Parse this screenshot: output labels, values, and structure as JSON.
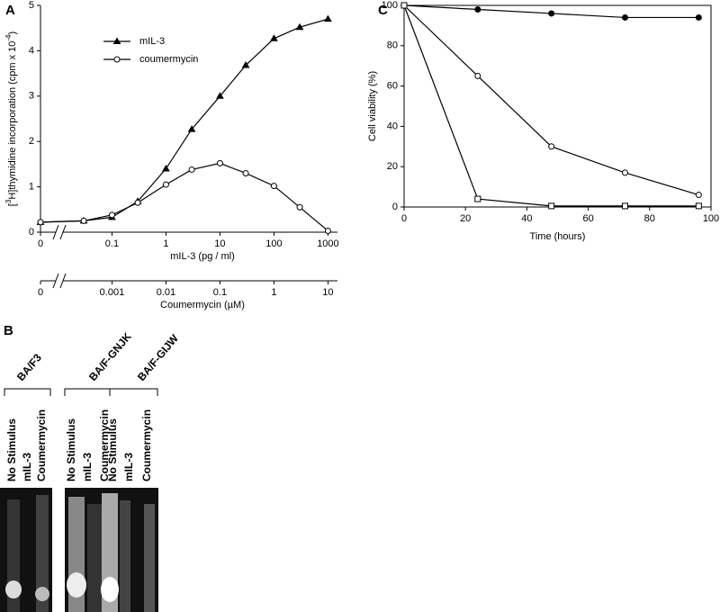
{
  "panel_labels": [
    "A",
    "B",
    "C"
  ],
  "chart_data": [
    {
      "type": "line",
      "x_scale": "log",
      "x_break": true,
      "x": [
        0,
        0.03,
        0.1,
        0.3,
        1,
        3,
        10,
        30,
        100,
        300,
        1000
      ],
      "xlim": [
        0.015,
        1500
      ],
      "xticks": [
        0,
        0.1,
        1,
        10,
        100,
        1000
      ],
      "x_label": "mIL-3 (pg / ml)",
      "x2lim": [
        0.00015,
        15
      ],
      "x2ticks": [
        0,
        0.001,
        0.01,
        0.1,
        1,
        10
      ],
      "x2_label": "Coumermycin (µM)",
      "ylim": [
        0,
        5
      ],
      "yticks": [
        0,
        1,
        2,
        3,
        4,
        5
      ],
      "y_label": [
        "[",
        "3",
        "H]thymidine incorporation (cpm x 10",
        "-4",
        ")"
      ],
      "legend": "upper left",
      "series": [
        {
          "name": "mIL-3",
          "marker": "triangle",
          "color": "#000000",
          "values": [
            0.22,
            0.25,
            0.33,
            0.68,
            1.4,
            2.27,
            3.0,
            3.68,
            4.27,
            4.52,
            4.7
          ]
        },
        {
          "name": "coumermycin",
          "marker": "circle",
          "color": "#000000",
          "values": [
            0.22,
            0.25,
            0.38,
            0.65,
            1.05,
            1.38,
            1.52,
            1.3,
            1.02,
            0.55,
            0.03
          ]
        }
      ]
    },
    {
      "type": "line",
      "x": [
        0,
        24,
        48,
        72,
        96
      ],
      "xlim": [
        0,
        100
      ],
      "xticks": [
        0,
        20,
        40,
        60,
        80,
        100
      ],
      "x_label": "Time (hours)",
      "ylim": [
        0,
        100
      ],
      "yticks": [
        0,
        20,
        40,
        60,
        80,
        100
      ],
      "y_label": "Cell viability (%)",
      "series": [
        {
          "marker": "filled-circle",
          "color": "#000000",
          "values": [
            100,
            98,
            96,
            94,
            94
          ]
        },
        {
          "marker": "circle",
          "color": "#000000",
          "values": [
            100,
            65,
            30,
            17,
            6
          ]
        },
        {
          "marker": "square",
          "color": "#000000",
          "values": [
            100,
            4,
            0.5,
            0.5,
            0.5
          ]
        }
      ]
    }
  ],
  "gel": {
    "groups": [
      "BA/F3",
      "BA/F-GNJK",
      "BA/F-GIJW"
    ],
    "lanes": [
      "No Stimulus",
      "mIL-3",
      "Coumermycin"
    ]
  }
}
